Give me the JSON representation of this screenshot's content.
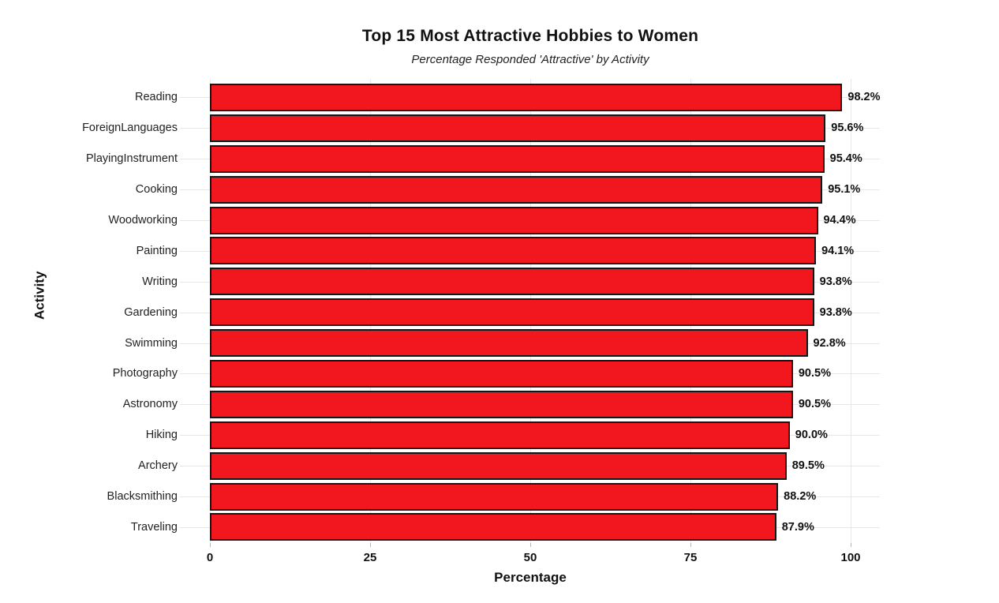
{
  "title": "Top 15 Most Attractive Hobbies to Women",
  "subtitle": "Percentage Responded 'Attractive' by Activity",
  "chart_data": {
    "type": "bar",
    "orientation": "horizontal",
    "title": "Top 15 Most Attractive Hobbies to Women",
    "subtitle": "Percentage Responded 'Attractive' by Activity",
    "xlabel": "Percentage",
    "ylabel": "Activity",
    "xlim": [
      0,
      100
    ],
    "x_ticks": [
      0,
      25,
      50,
      75,
      100
    ],
    "grid": true,
    "legend": false,
    "bar_color": "#f2161e",
    "bar_border_color": "#161616",
    "categories": [
      "Reading",
      "ForeignLanguages",
      "PlayingInstrument",
      "Cooking",
      "Woodworking",
      "Painting",
      "Writing",
      "Gardening",
      "Swimming",
      "Photography",
      "Astronomy",
      "Hiking",
      "Archery",
      "Blacksmithing",
      "Traveling"
    ],
    "values": [
      98.2,
      95.6,
      95.4,
      95.1,
      94.4,
      94.1,
      93.8,
      93.8,
      92.8,
      90.5,
      90.5,
      90.0,
      89.5,
      88.2,
      87.9
    ],
    "value_labels": [
      "98.2%",
      "95.6%",
      "95.4%",
      "95.1%",
      "94.4%",
      "94.1%",
      "93.8%",
      "93.8%",
      "92.8%",
      "90.5%",
      "90.5%",
      "90.0%",
      "89.5%",
      "88.2%",
      "87.9%"
    ]
  }
}
